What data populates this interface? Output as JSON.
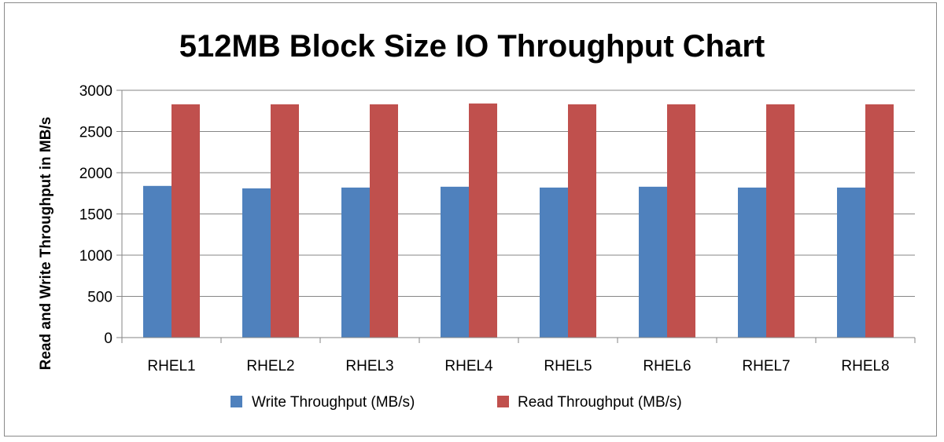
{
  "chart_data": {
    "type": "bar",
    "title": "512MB Block Size IO Throughput Chart",
    "xlabel": "",
    "ylabel": "Read and Write Throughput in MB/s",
    "categories": [
      "RHEL1",
      "RHEL2",
      "RHEL3",
      "RHEL4",
      "RHEL5",
      "RHEL6",
      "RHEL7",
      "RHEL8"
    ],
    "series": [
      {
        "name": "Write Throughput (MB/s)",
        "color": "#4f81bd",
        "values": [
          1840,
          1810,
          1820,
          1830,
          1820,
          1830,
          1820,
          1820
        ]
      },
      {
        "name": "Read Throughput (MB/s)",
        "color": "#c0504d",
        "values": [
          2830,
          2830,
          2830,
          2840,
          2830,
          2830,
          2830,
          2830
        ]
      }
    ],
    "ylim": [
      0,
      3000
    ],
    "yticks": [
      "0",
      "500",
      "1000",
      "1500",
      "2000",
      "2500",
      "3000"
    ],
    "grid": true,
    "legend_position": "bottom"
  }
}
